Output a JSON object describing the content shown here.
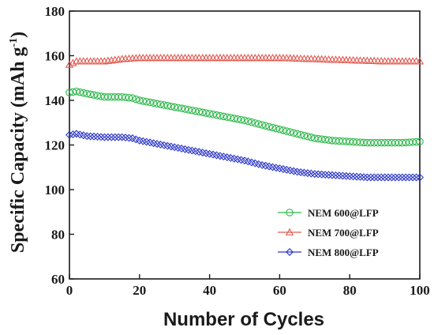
{
  "chart_data": {
    "type": "line",
    "xlabel": "Number of Cycles",
    "ylabel": "Specific Capacity (mAh g",
    "ylabel_sup": "-1",
    "ylabel_close": ")",
    "xlim": [
      0,
      100
    ],
    "ylim": [
      60,
      180
    ],
    "xticks": [
      0,
      20,
      40,
      60,
      80,
      100
    ],
    "yticks": [
      60,
      80,
      100,
      120,
      140,
      160,
      180
    ],
    "grid": false,
    "legend_position": "bottom-right",
    "series": [
      {
        "name": "NEM 600@LFP",
        "marker": "circle",
        "color": "#2db84a",
        "x": [
          0,
          2,
          5,
          10,
          15,
          18,
          20,
          25,
          30,
          35,
          40,
          45,
          50,
          55,
          60,
          65,
          70,
          75,
          80,
          85,
          90,
          95,
          100
        ],
        "values": [
          143.5,
          144,
          143,
          141.5,
          141.5,
          141,
          140,
          138.5,
          137,
          135.5,
          134,
          132.5,
          131,
          129,
          127,
          125,
          123,
          122,
          121.5,
          121,
          121,
          121,
          121.5
        ]
      },
      {
        "name": "NEM 700@LFP",
        "marker": "triangle",
        "color": "#e05a50",
        "x": [
          0,
          2,
          5,
          10,
          15,
          20,
          30,
          40,
          50,
          60,
          70,
          80,
          90,
          95,
          100
        ],
        "values": [
          156,
          157.5,
          157.5,
          157.5,
          158.5,
          159,
          159,
          159,
          159,
          159,
          158.5,
          158,
          157.5,
          157.5,
          157.5
        ]
      },
      {
        "name": "NEM 800@LFP",
        "marker": "diamond",
        "color": "#2b35c8",
        "x": [
          0,
          2,
          5,
          10,
          15,
          18,
          20,
          25,
          30,
          35,
          40,
          45,
          50,
          55,
          60,
          65,
          70,
          75,
          80,
          85,
          90,
          95,
          100
        ],
        "values": [
          124.5,
          125,
          124,
          123.5,
          123.5,
          123,
          122,
          120.5,
          119,
          117.5,
          116,
          114.5,
          113,
          111,
          109.5,
          108,
          107,
          106.5,
          106,
          105.5,
          105.5,
          105.5,
          105.5
        ]
      }
    ]
  }
}
